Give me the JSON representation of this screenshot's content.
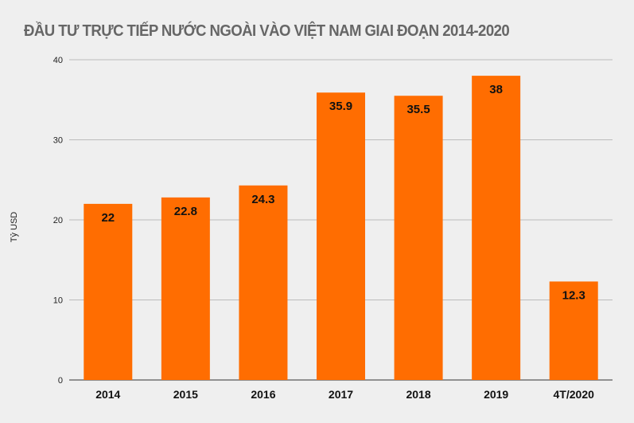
{
  "chart_data": {
    "type": "bar",
    "title": "ĐẦU TƯ TRỰC TIẾP NƯỚC NGOÀI VÀO VIỆT NAM GIAI ĐOẠN 2014-2020",
    "xlabel": "",
    "ylabel": "Tỷ USD",
    "categories": [
      "2014",
      "2015",
      "2016",
      "2017",
      "2018",
      "2019",
      "4T/2020"
    ],
    "values": [
      22,
      22.8,
      24.3,
      35.9,
      35.5,
      38,
      12.3
    ],
    "data_labels": [
      "22",
      "22.8",
      "24.3",
      "35.9",
      "35.5",
      "38",
      "12.3"
    ],
    "ylim": [
      0,
      40
    ],
    "yticks": [
      0,
      10,
      20,
      30,
      40
    ],
    "grid": true,
    "legend": "none",
    "bar_color": "#ff6d01"
  }
}
